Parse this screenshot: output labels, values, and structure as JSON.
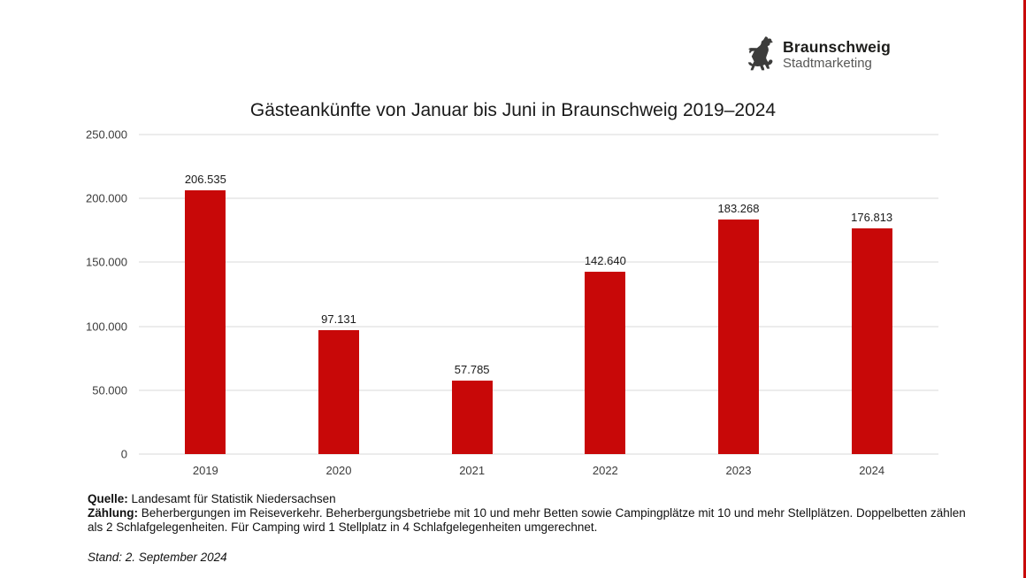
{
  "logo": {
    "name": "Braunschweig",
    "subtitle": "Stadtmarketing"
  },
  "chart_data": {
    "type": "bar",
    "title": "Gästeankünfte von Januar bis Juni in Braunschweig 2019–2024",
    "categories": [
      "2019",
      "2020",
      "2021",
      "2022",
      "2023",
      "2024"
    ],
    "values": [
      206535,
      97131,
      57785,
      142640,
      183268,
      176813
    ],
    "value_labels": [
      "206.535",
      "97.131",
      "57.785",
      "142.640",
      "183.268",
      "176.813"
    ],
    "ylim": [
      0,
      250000
    ],
    "yticks": [
      0,
      50000,
      100000,
      150000,
      200000,
      250000
    ],
    "ytick_labels": [
      "0",
      "50.000",
      "100.000",
      "150.000",
      "200.000",
      "250.000"
    ],
    "xlabel": "",
    "ylabel": "",
    "grid": true,
    "legend": false,
    "bar_color": "#c80808",
    "gridline_color": "#d9d9d9"
  },
  "footer": {
    "quelle_label": "Quelle:",
    "quelle_text": " Landesamt für Statistik Niedersachsen",
    "zaehlung_label": "Zählung:",
    "zaehlung_text": " Beherbergungen im Reiseverkehr. Beherbergungsbetriebe mit 10 und mehr Betten sowie Campingplätze mit 10 und mehr Stellplätzen. Doppelbetten zählen als 2 Schlafgelegenheiten. Für Camping wird 1 Stellplatz in 4 Schlafgelegenheiten umgerechnet.",
    "stand_text": "Stand: 2. September 2024"
  },
  "accent_color": "#c80808"
}
